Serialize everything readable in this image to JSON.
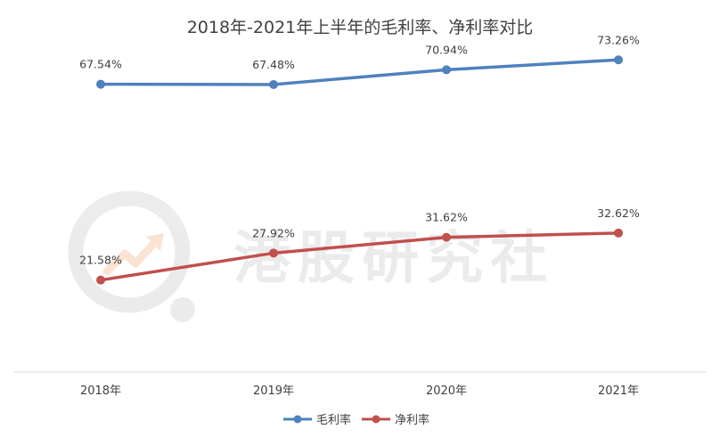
{
  "chart_data": {
    "type": "line",
    "title": "2018年-2021年上半年的毛利率、净利率对比",
    "categories": [
      "2018年",
      "2019年",
      "2020年",
      "2021年"
    ],
    "series": [
      {
        "name": "毛利率",
        "color": "#4f81bd",
        "values": [
          67.54,
          67.48,
          70.94,
          73.26
        ],
        "labels": [
          "67.54%",
          "67.48%",
          "70.94%",
          "73.26%"
        ]
      },
      {
        "name": "净利率",
        "color": "#c0504d",
        "values": [
          21.58,
          27.92,
          31.62,
          32.62
        ],
        "labels": [
          "21.58%",
          "27.92%",
          "31.62%",
          "32.62%"
        ]
      }
    ],
    "ylim": [
      0,
      80
    ],
    "grid": false,
    "legend": "bottom",
    "y_axis_visible": false
  },
  "watermark": {
    "text": "港股研究社"
  }
}
